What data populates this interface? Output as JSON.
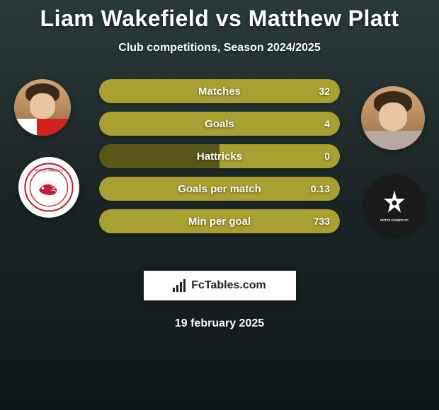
{
  "title": "Liam Wakefield vs Matthew Platt",
  "subtitle": "Club competitions, Season 2024/2025",
  "date": "19 february 2025",
  "logo_text": "FcTables.com",
  "colors": {
    "bar_olive": "#a8a030",
    "bar_dark": "#5a5518",
    "background_top": "#2a3a3a",
    "background_bottom": "#0f1818",
    "text": "#ffffff"
  },
  "stats": [
    {
      "label": "Matches",
      "left_pct": 0,
      "right_value": "32",
      "full_right": true
    },
    {
      "label": "Goals",
      "left_pct": 0,
      "right_value": "4",
      "full_right": true
    },
    {
      "label": "Hattricks",
      "left_pct": 50,
      "right_value": "0",
      "full_right": false
    },
    {
      "label": "Goals per match",
      "left_pct": 0,
      "right_value": "0.13",
      "full_right": true
    },
    {
      "label": "Min per goal",
      "left_pct": 0,
      "right_value": "733",
      "full_right": true
    }
  ],
  "players": {
    "left": {
      "name": "Liam Wakefield",
      "club": "Morecambe FC"
    },
    "right": {
      "name": "Matthew Platt",
      "club": "Notts County FC"
    }
  }
}
